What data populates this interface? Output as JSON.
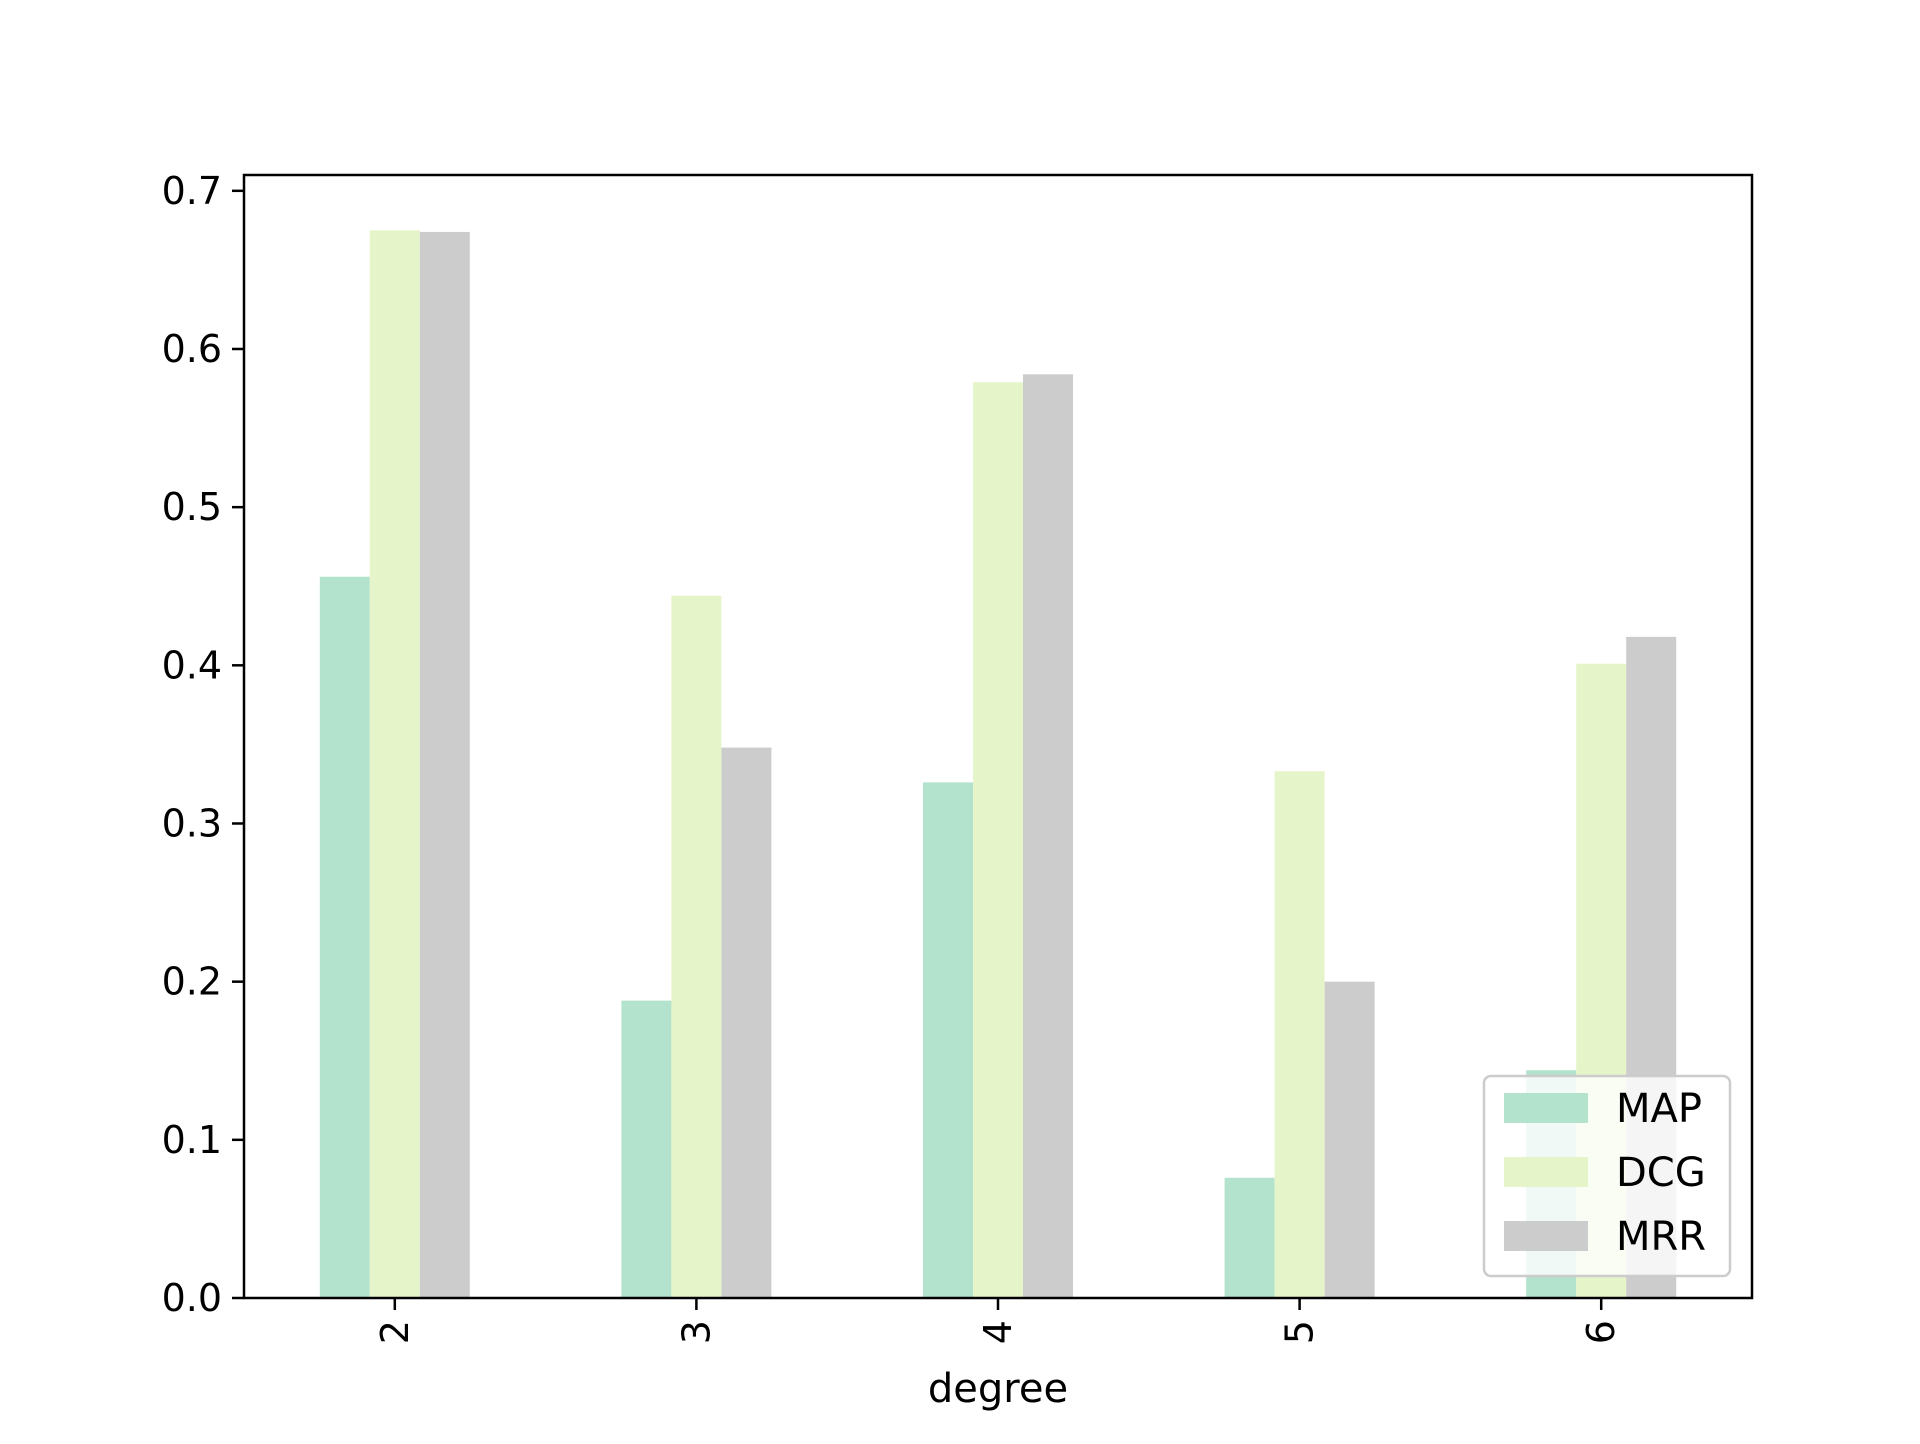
{
  "chart_data": {
    "type": "bar",
    "title": "",
    "xlabel": "degree",
    "ylabel": "",
    "categories": [
      "2",
      "3",
      "4",
      "5",
      "6"
    ],
    "series": [
      {
        "name": "MAP",
        "values": [
          0.456,
          0.188,
          0.326,
          0.076,
          0.144
        ],
        "color": "#b3e2cd"
      },
      {
        "name": "DCG",
        "values": [
          0.675,
          0.444,
          0.579,
          0.333,
          0.401
        ],
        "color": "#e6f5c9"
      },
      {
        "name": "MRR",
        "values": [
          0.674,
          0.348,
          0.584,
          0.2,
          0.418
        ],
        "color": "#cccccc"
      }
    ],
    "ylim": [
      0,
      0.71
    ],
    "yticks": [
      "0.0",
      "0.1",
      "0.2",
      "0.3",
      "0.4",
      "0.5",
      "0.6",
      "0.7"
    ],
    "x_tick_rotation": "vertical",
    "grid": false,
    "legend_position": "lower right"
  }
}
